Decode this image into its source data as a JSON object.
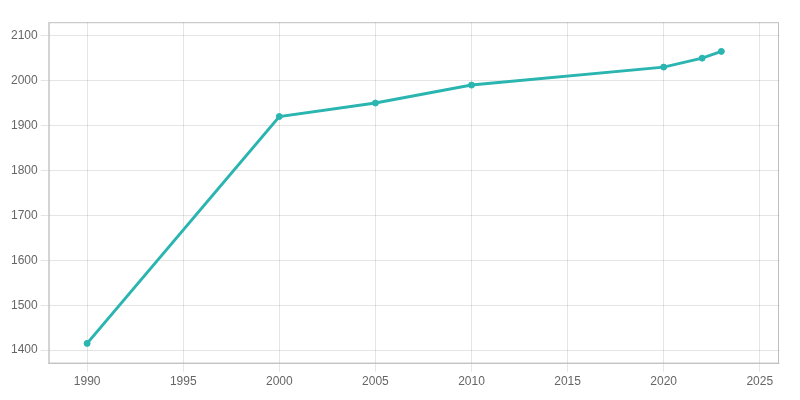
{
  "chart_data": {
    "type": "line",
    "x": [
      1990,
      2000,
      2005,
      2010,
      2020,
      2022,
      2023
    ],
    "values": [
      1415,
      1920,
      1950,
      1990,
      2030,
      2050,
      2065
    ],
    "color": "#2ab5b0",
    "marker": "circle",
    "xlim": [
      1988,
      2026
    ],
    "ylim": [
      1370,
      2130
    ],
    "xticks": [
      1990,
      1995,
      2000,
      2005,
      2010,
      2015,
      2020,
      2025
    ],
    "yticks": [
      1400,
      1500,
      1600,
      1700,
      1800,
      1900,
      2000,
      2100
    ],
    "grid": true
  }
}
